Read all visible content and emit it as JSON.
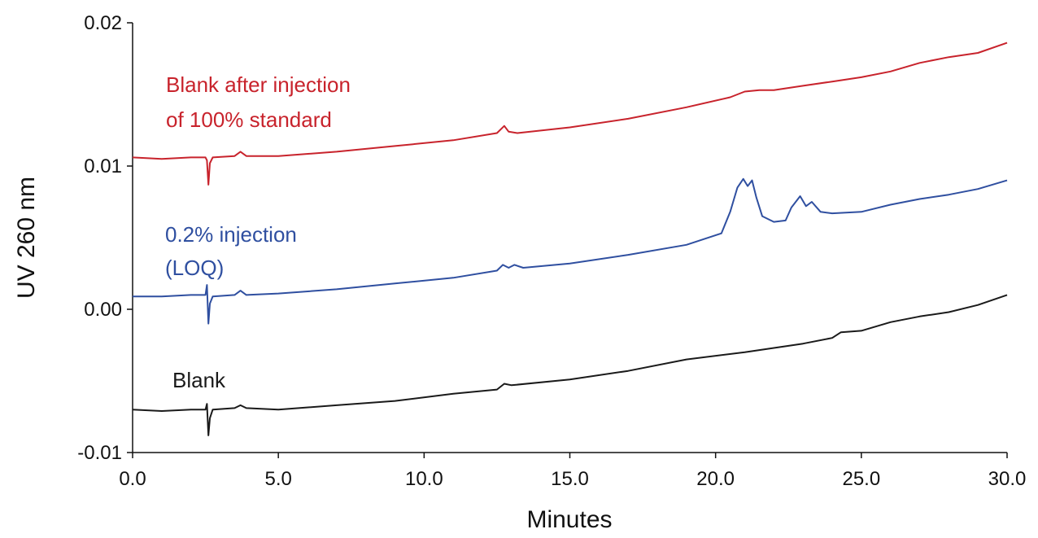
{
  "chart_data": {
    "type": "line",
    "xlabel": "Minutes",
    "ylabel": "UV 260 nm",
    "xlim": [
      0,
      30
    ],
    "ylim": [
      -0.01,
      0.02
    ],
    "x_ticks": [
      "0.0",
      "5.0",
      "10.0",
      "15.0",
      "20.0",
      "25.0",
      "30.0"
    ],
    "y_ticks": [
      "-0.01",
      "0.00",
      "0.01",
      "0.02"
    ],
    "y_tick_values": [
      -0.01,
      0.0,
      0.01,
      0.02
    ],
    "grid": false,
    "series": [
      {
        "name": "Blank after injection of 100% standard",
        "label_lines": [
          "Blank after injection",
          "of 100% standard"
        ],
        "color": "#c8232c",
        "points": [
          [
            0,
            0.0106
          ],
          [
            1,
            0.0105
          ],
          [
            2,
            0.0106
          ],
          [
            2.5,
            0.0106
          ],
          [
            2.55,
            0.0104
          ],
          [
            2.6,
            0.0087
          ],
          [
            2.65,
            0.0102
          ],
          [
            2.75,
            0.0106
          ],
          [
            3.5,
            0.0107
          ],
          [
            3.7,
            0.011
          ],
          [
            3.9,
            0.0107
          ],
          [
            5,
            0.0107
          ],
          [
            7,
            0.011
          ],
          [
            9,
            0.0114
          ],
          [
            11,
            0.0118
          ],
          [
            12.5,
            0.0123
          ],
          [
            12.75,
            0.0128
          ],
          [
            12.9,
            0.0124
          ],
          [
            13.2,
            0.0123
          ],
          [
            15,
            0.0127
          ],
          [
            17,
            0.0133
          ],
          [
            19,
            0.0141
          ],
          [
            20.5,
            0.0148
          ],
          [
            21,
            0.0152
          ],
          [
            21.5,
            0.0153
          ],
          [
            22,
            0.0153
          ],
          [
            23,
            0.0156
          ],
          [
            24,
            0.0159
          ],
          [
            25,
            0.0162
          ],
          [
            26,
            0.0166
          ],
          [
            27,
            0.0172
          ],
          [
            28,
            0.0176
          ],
          [
            29,
            0.0179
          ],
          [
            30,
            0.0186
          ]
        ]
      },
      {
        "name": "0.2% injection (LOQ)",
        "label_lines": [
          "0.2% injection",
          "(LOQ)"
        ],
        "color": "#2f4fa0",
        "points": [
          [
            0,
            0.0009
          ],
          [
            1,
            0.0009
          ],
          [
            2,
            0.001
          ],
          [
            2.5,
            0.001
          ],
          [
            2.55,
            0.0017
          ],
          [
            2.6,
            -0.001
          ],
          [
            2.65,
            0.0004
          ],
          [
            2.75,
            0.0009
          ],
          [
            3.5,
            0.001
          ],
          [
            3.7,
            0.0013
          ],
          [
            3.9,
            0.001
          ],
          [
            5,
            0.0011
          ],
          [
            7,
            0.0014
          ],
          [
            9,
            0.0018
          ],
          [
            11,
            0.0022
          ],
          [
            12.5,
            0.0027
          ],
          [
            12.7,
            0.0031
          ],
          [
            12.9,
            0.0029
          ],
          [
            13.1,
            0.0031
          ],
          [
            13.4,
            0.0029
          ],
          [
            15,
            0.0032
          ],
          [
            17,
            0.0038
          ],
          [
            19,
            0.0045
          ],
          [
            20.2,
            0.0053
          ],
          [
            20.5,
            0.0068
          ],
          [
            20.75,
            0.0085
          ],
          [
            20.95,
            0.0091
          ],
          [
            21.1,
            0.0086
          ],
          [
            21.25,
            0.009
          ],
          [
            21.4,
            0.0078
          ],
          [
            21.6,
            0.0065
          ],
          [
            22,
            0.0061
          ],
          [
            22.4,
            0.0062
          ],
          [
            22.6,
            0.0071
          ],
          [
            22.9,
            0.0079
          ],
          [
            23.1,
            0.0072
          ],
          [
            23.3,
            0.0075
          ],
          [
            23.6,
            0.0068
          ],
          [
            24,
            0.0067
          ],
          [
            25,
            0.0068
          ],
          [
            26,
            0.0073
          ],
          [
            27,
            0.0077
          ],
          [
            28,
            0.008
          ],
          [
            29,
            0.0084
          ],
          [
            30,
            0.009
          ]
        ]
      },
      {
        "name": "Blank",
        "label_lines": [
          "Blank"
        ],
        "color": "#1a1a1a",
        "points": [
          [
            0,
            -0.007
          ],
          [
            1,
            -0.0071
          ],
          [
            2,
            -0.007
          ],
          [
            2.5,
            -0.007
          ],
          [
            2.55,
            -0.0066
          ],
          [
            2.6,
            -0.0088
          ],
          [
            2.65,
            -0.0076
          ],
          [
            2.75,
            -0.007
          ],
          [
            3.5,
            -0.0069
          ],
          [
            3.7,
            -0.0067
          ],
          [
            3.9,
            -0.0069
          ],
          [
            5,
            -0.007
          ],
          [
            7,
            -0.0067
          ],
          [
            9,
            -0.0064
          ],
          [
            11,
            -0.0059
          ],
          [
            12.5,
            -0.0056
          ],
          [
            12.75,
            -0.0052
          ],
          [
            13,
            -0.0053
          ],
          [
            15,
            -0.0049
          ],
          [
            17,
            -0.0043
          ],
          [
            19,
            -0.0035
          ],
          [
            21,
            -0.003
          ],
          [
            23,
            -0.0024
          ],
          [
            24,
            -0.002
          ],
          [
            24.3,
            -0.0016
          ],
          [
            25,
            -0.0015
          ],
          [
            26,
            -0.0009
          ],
          [
            27,
            -0.0005
          ],
          [
            28,
            -0.0002
          ],
          [
            29,
            0.0003
          ],
          [
            30,
            0.001
          ]
        ]
      }
    ]
  }
}
